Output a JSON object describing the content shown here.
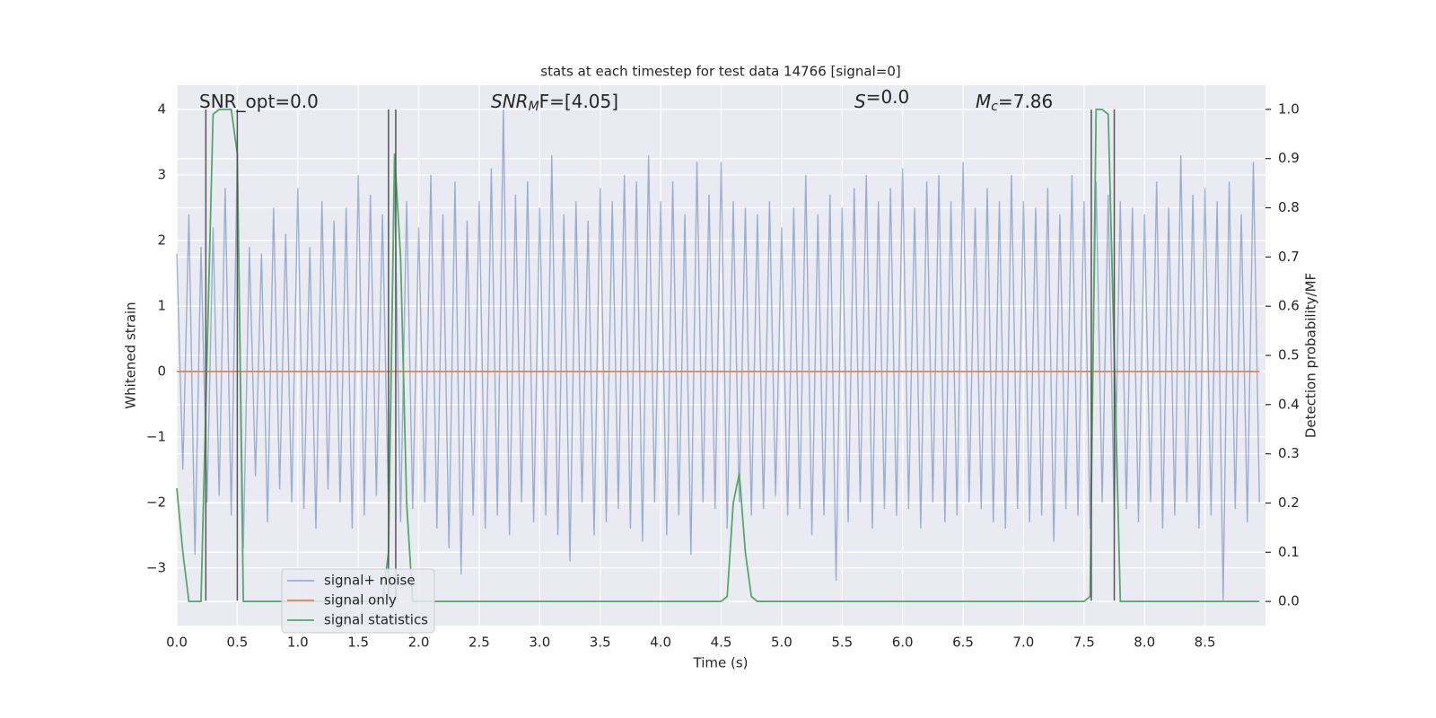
{
  "chart_data": {
    "type": "line",
    "title": "stats at each timestep for test data 14766 [signal=0]",
    "xlabel": "Time (s)",
    "ylabel": "Whitened strain",
    "y2label": "Detection probability/MF",
    "x": [
      0,
      0.05,
      0.1,
      0.15,
      0.2,
      0.25,
      0.3,
      0.35,
      0.4,
      0.45,
      0.5,
      0.55,
      0.6,
      0.65,
      0.7,
      0.75,
      0.8,
      0.85,
      0.9,
      0.95,
      1,
      1.05,
      1.1,
      1.15,
      1.2,
      1.25,
      1.3,
      1.35,
      1.4,
      1.45,
      1.5,
      1.55,
      1.6,
      1.65,
      1.7,
      1.75,
      1.8,
      1.85,
      1.9,
      1.95,
      2,
      2.05,
      2.1,
      2.15,
      2.2,
      2.25,
      2.3,
      2.35,
      2.4,
      2.45,
      2.5,
      2.55,
      2.6,
      2.65,
      2.7,
      2.75,
      2.8,
      2.85,
      2.9,
      2.95,
      3,
      3.05,
      3.1,
      3.15,
      3.2,
      3.25,
      3.3,
      3.35,
      3.4,
      3.45,
      3.5,
      3.55,
      3.6,
      3.65,
      3.7,
      3.75,
      3.8,
      3.85,
      3.9,
      3.95,
      4,
      4.05,
      4.1,
      4.15,
      4.2,
      4.25,
      4.3,
      4.35,
      4.4,
      4.45,
      4.5,
      4.55,
      4.6,
      4.65,
      4.7,
      4.75,
      4.8,
      4.85,
      4.9,
      4.95,
      5,
      5.05,
      5.1,
      5.15,
      5.2,
      5.25,
      5.3,
      5.35,
      5.4,
      5.45,
      5.5,
      5.55,
      5.6,
      5.65,
      5.7,
      5.75,
      5.8,
      5.85,
      5.9,
      5.95,
      6,
      6.05,
      6.1,
      6.15,
      6.2,
      6.25,
      6.3,
      6.35,
      6.4,
      6.45,
      6.5,
      6.55,
      6.6,
      6.65,
      6.7,
      6.75,
      6.8,
      6.85,
      6.9,
      6.95,
      7,
      7.05,
      7.1,
      7.15,
      7.2,
      7.25,
      7.3,
      7.35,
      7.4,
      7.45,
      7.5,
      7.55,
      7.6,
      7.65,
      7.7,
      7.75,
      7.8,
      7.85,
      7.9,
      7.95,
      8,
      8.05,
      8.1,
      8.15,
      8.2,
      8.25,
      8.3,
      8.35,
      8.4,
      8.45,
      8.5,
      8.55,
      8.6,
      8.65,
      8.7,
      8.75,
      8.8,
      8.85,
      8.9,
      8.95
    ],
    "series": [
      {
        "name": "signal+ noise",
        "color": "#4c72b0",
        "alpha": 0.5,
        "values": [
          1.8,
          -1.5,
          2.4,
          -2.8,
          1.9,
          -2.0,
          2.2,
          -1.9,
          2.8,
          -2.2,
          3.3,
          -2.7,
          1.9,
          -1.6,
          1.8,
          -2.3,
          2.5,
          -1.8,
          2.1,
          -2.0,
          2.8,
          -2.1,
          1.9,
          -2.4,
          2.6,
          -1.8,
          2.3,
          -2.0,
          2.5,
          -2.4,
          3.0,
          -2.2,
          2.7,
          -1.9,
          2.4,
          -2.1,
          3.0,
          -2.3,
          2.6,
          -2.1,
          2.2,
          -2.0,
          3.0,
          -2.4,
          2.4,
          -2.7,
          2.9,
          -3.1,
          2.3,
          -2.2,
          2.6,
          -2.4,
          3.1,
          -2.2,
          4.0,
          -2.5,
          2.7,
          -2.0,
          2.9,
          -2.3,
          2.5,
          -2.2,
          3.3,
          -2.5,
          2.4,
          -2.9,
          2.6,
          -2.0,
          2.3,
          -2.5,
          2.8,
          -2.3,
          2.6,
          -2.1,
          3.0,
          -2.4,
          2.9,
          -2.6,
          3.3,
          -2.0,
          2.6,
          -2.5,
          2.9,
          -2.2,
          2.4,
          -2.8,
          3.2,
          -2.0,
          2.7,
          -2.1,
          3.2,
          -2.4,
          2.6,
          -2.0,
          2.5,
          -2.2,
          2.4,
          -2.1,
          2.6,
          -1.9,
          2.2,
          -2.2,
          2.5,
          -2.1,
          3.0,
          -2.5,
          2.4,
          -2.2,
          2.7,
          -3.2,
          2.5,
          -2.3,
          2.8,
          -2.0,
          3.0,
          -2.4,
          2.6,
          -2.1,
          2.8,
          -2.2,
          3.1,
          -2.1,
          2.5,
          -2.4,
          2.9,
          -2.0,
          3.0,
          -2.3,
          2.6,
          -2.2,
          3.2,
          -2.0,
          2.5,
          -2.1,
          2.8,
          -2.3,
          2.6,
          -2.4,
          3.0,
          -2.1,
          2.6,
          -2.3,
          2.5,
          -2.2,
          2.8,
          -2.6,
          2.4,
          -2.1,
          3.0,
          -2.2,
          2.6,
          -2.4,
          2.9,
          -2.0,
          2.7,
          -2.3,
          2.6,
          -2.1,
          2.5,
          -2.3,
          2.4,
          -2.0,
          2.9,
          -2.4,
          2.5,
          -2.2,
          3.3,
          -2.0,
          2.7,
          -2.4,
          2.8,
          -2.2,
          2.6,
          -3.5,
          2.9,
          -2.1,
          2.4,
          -2.3,
          3.2,
          -2.0
        ]
      },
      {
        "name": "signal only",
        "color": "#dd8452",
        "alpha": 1,
        "values": [
          0,
          0,
          0,
          0,
          0,
          0,
          0,
          0,
          0,
          0,
          0,
          0,
          0,
          0,
          0,
          0,
          0,
          0,
          0,
          0,
          0,
          0,
          0,
          0,
          0,
          0,
          0,
          0,
          0,
          0,
          0,
          0,
          0,
          0,
          0,
          0,
          0,
          0,
          0,
          0,
          0,
          0,
          0,
          0,
          0,
          0,
          0,
          0,
          0,
          0,
          0,
          0,
          0,
          0,
          0,
          0,
          0,
          0,
          0,
          0,
          0,
          0,
          0,
          0,
          0,
          0,
          0,
          0,
          0,
          0,
          0,
          0,
          0,
          0,
          0,
          0,
          0,
          0,
          0,
          0,
          0,
          0,
          0,
          0,
          0,
          0,
          0,
          0,
          0,
          0,
          0,
          0,
          0,
          0,
          0,
          0,
          0,
          0,
          0,
          0,
          0,
          0,
          0,
          0,
          0,
          0,
          0,
          0,
          0,
          0,
          0,
          0,
          0,
          0,
          0,
          0,
          0,
          0,
          0,
          0,
          0,
          0,
          0,
          0,
          0,
          0,
          0,
          0,
          0,
          0,
          0,
          0,
          0,
          0,
          0,
          0,
          0,
          0,
          0,
          0,
          0,
          0,
          0,
          0,
          0,
          0,
          0,
          0,
          0,
          0,
          0,
          0,
          0,
          0,
          0,
          0,
          0,
          0,
          0,
          0,
          0,
          0,
          0,
          0,
          0,
          0,
          0,
          0,
          0,
          0,
          0,
          0,
          0,
          0,
          0,
          0,
          0,
          0,
          0,
          0
        ]
      },
      {
        "name": "signal statistics",
        "color": "#55a868",
        "alpha": 1,
        "axis": "y2",
        "values": [
          0.23,
          0.1,
          0,
          0,
          0,
          0.5,
          0.99,
          1.0,
          1.0,
          1.0,
          0.91,
          0,
          0,
          0,
          0,
          0,
          0,
          0,
          0,
          0,
          0,
          0,
          0,
          0,
          0,
          0,
          0,
          0,
          0,
          0,
          0,
          0,
          0,
          0,
          0,
          0.1,
          0.91,
          0.7,
          0.2,
          0,
          0,
          0,
          0,
          0,
          0,
          0,
          0,
          0,
          0,
          0,
          0,
          0,
          0,
          0,
          0,
          0,
          0,
          0,
          0,
          0,
          0,
          0,
          0,
          0,
          0,
          0,
          0,
          0,
          0,
          0,
          0,
          0,
          0,
          0,
          0,
          0,
          0,
          0,
          0,
          0,
          0,
          0,
          0,
          0,
          0,
          0,
          0,
          0,
          0,
          0,
          0,
          0.01,
          0.2,
          0.26,
          0.1,
          0.01,
          0,
          0,
          0,
          0,
          0,
          0,
          0,
          0,
          0,
          0,
          0,
          0,
          0,
          0,
          0,
          0,
          0,
          0,
          0,
          0,
          0,
          0,
          0,
          0,
          0,
          0,
          0,
          0,
          0,
          0,
          0,
          0,
          0,
          0,
          0,
          0,
          0,
          0,
          0,
          0,
          0,
          0,
          0,
          0,
          0,
          0,
          0,
          0,
          0,
          0,
          0,
          0,
          0,
          0,
          0,
          0.01,
          1.0,
          1.0,
          0.99,
          0.5,
          0,
          0,
          0,
          0,
          0,
          0,
          0,
          0,
          0,
          0,
          0,
          0,
          0,
          0,
          0,
          0,
          0,
          0,
          0,
          0,
          0,
          0,
          0,
          0
        ]
      }
    ],
    "vlines": {
      "x": [
        0.24,
        0.5,
        1.75,
        1.81,
        7.56,
        7.75
      ],
      "ymin": -3.5,
      "ymax": 4,
      "color": "#555555"
    },
    "annotations": [
      {
        "parts": [
          "SNR_opt=0.0"
        ]
      },
      {
        "parts": [
          "SNR",
          "M",
          "F=[4.05]"
        ]
      },
      {
        "parts": [
          "S",
          "",
          "=0.0"
        ]
      },
      {
        "parts": [
          "M",
          "c",
          "=7.86"
        ]
      }
    ],
    "xlim": [
      0,
      9.0
    ],
    "xticks": [
      {
        "value": 0,
        "label": "0.0"
      },
      {
        "value": 0.5,
        "label": "0.5"
      },
      {
        "value": 1,
        "label": "1.0"
      },
      {
        "value": 1.5,
        "label": "1.5"
      },
      {
        "value": 2,
        "label": "2.0"
      },
      {
        "value": 2.5,
        "label": "2.5"
      },
      {
        "value": 3,
        "label": "3.0"
      },
      {
        "value": 3.5,
        "label": "3.5"
      },
      {
        "value": 4,
        "label": "4.0"
      },
      {
        "value": 4.5,
        "label": "4.5"
      },
      {
        "value": 5,
        "label": "5.0"
      },
      {
        "value": 5.5,
        "label": "5.5"
      },
      {
        "value": 6,
        "label": "6.0"
      },
      {
        "value": 6.5,
        "label": "6.5"
      },
      {
        "value": 7,
        "label": "7.0"
      },
      {
        "value": 7.5,
        "label": "7.5"
      },
      {
        "value": 8,
        "label": "8.0"
      },
      {
        "value": 8.5,
        "label": "8.5"
      }
    ],
    "ylim": [
      -3.88,
      4.37
    ],
    "yticks": [
      {
        "value": -3,
        "label": "−3"
      },
      {
        "value": -2,
        "label": "−2"
      },
      {
        "value": -1,
        "label": "−1"
      },
      0,
      1,
      2,
      3,
      4
    ],
    "y2lim": [
      -0.049,
      1.049
    ],
    "y2ticks": [
      {
        "value": 0,
        "label": "0.0"
      },
      {
        "value": 0.1,
        "label": "0.1"
      },
      {
        "value": 0.2,
        "label": "0.2"
      },
      {
        "value": 0.3,
        "label": "0.3"
      },
      {
        "value": 0.4,
        "label": "0.4"
      },
      {
        "value": 0.5,
        "label": "0.5"
      },
      {
        "value": 0.6,
        "label": "0.6"
      },
      {
        "value": 0.7,
        "label": "0.7"
      },
      {
        "value": 0.8,
        "label": "0.8"
      },
      {
        "value": 0.9,
        "label": "0.9"
      },
      {
        "value": 1,
        "label": "1.0"
      }
    ],
    "grid": true,
    "legend": "lower left"
  }
}
